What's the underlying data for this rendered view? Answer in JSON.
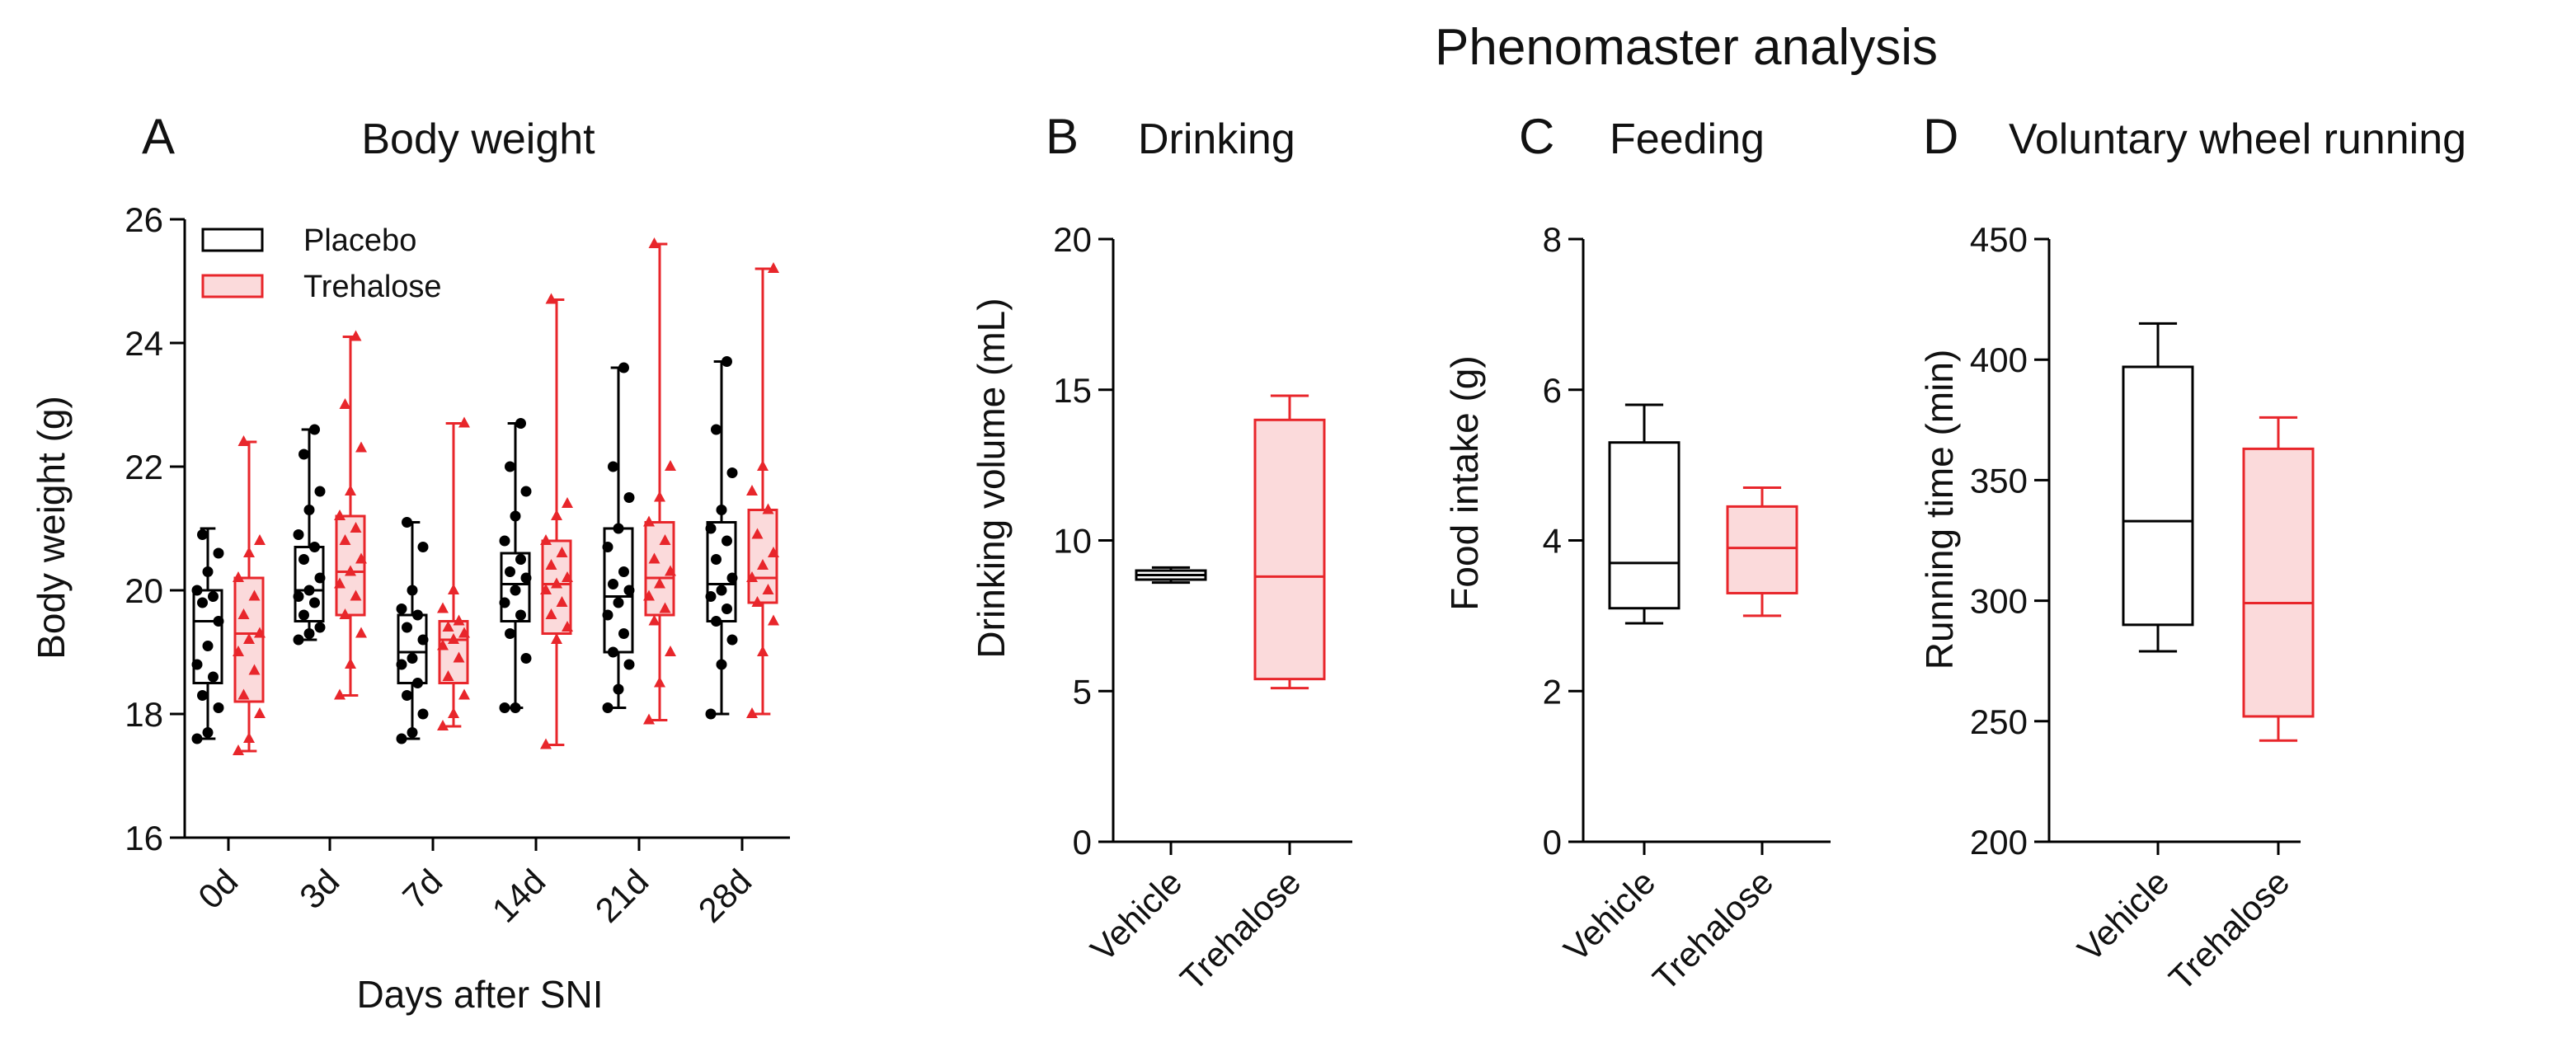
{
  "figure": {
    "title": "Phenomaster analysis",
    "colors": {
      "placebo": "#000000",
      "trehalose": "#e8262b",
      "trehalose_fill": "#fbdadb"
    }
  },
  "chart_data": [
    {
      "panel": "A",
      "type": "box",
      "title": "Body weight",
      "xlabel": "Days after SNI",
      "ylabel": "Body weight (g)",
      "ylim": [
        16,
        26
      ],
      "yticks": [
        16,
        18,
        20,
        22,
        24,
        26
      ],
      "categories": [
        "0d",
        "3d",
        "7d",
        "14d",
        "21d",
        "28d"
      ],
      "legend": {
        "position": "top-left",
        "entries": [
          "Placebo",
          "Trehalose"
        ]
      },
      "series": [
        {
          "name": "Placebo",
          "box": [
            {
              "min": 17.6,
              "q1": 18.5,
              "median": 19.5,
              "q3": 20.0,
              "max": 21.0
            },
            {
              "min": 19.2,
              "q1": 19.5,
              "median": 20.0,
              "q3": 20.7,
              "max": 22.6
            },
            {
              "min": 17.6,
              "q1": 18.5,
              "median": 19.0,
              "q3": 19.6,
              "max": 21.1
            },
            {
              "min": 18.1,
              "q1": 19.5,
              "median": 20.1,
              "q3": 20.6,
              "max": 22.7
            },
            {
              "min": 18.1,
              "q1": 19.0,
              "median": 19.9,
              "q3": 21.0,
              "max": 23.6
            },
            {
              "min": 18.0,
              "q1": 19.5,
              "median": 20.1,
              "q3": 21.1,
              "max": 23.7
            }
          ],
          "points": [
            [
              17.6,
              17.7,
              18.1,
              18.3,
              18.6,
              18.8,
              19.1,
              19.5,
              19.8,
              19.9,
              20.0,
              20.3,
              20.6,
              20.9
            ],
            [
              19.2,
              19.3,
              19.4,
              19.6,
              19.8,
              19.9,
              20.0,
              20.2,
              20.5,
              20.7,
              20.9,
              21.3,
              21.6,
              22.2,
              22.6
            ],
            [
              17.6,
              17.7,
              18.0,
              18.3,
              18.5,
              18.8,
              18.9,
              19.2,
              19.4,
              19.6,
              19.7,
              20.0,
              20.7,
              21.1
            ],
            [
              18.1,
              18.1,
              18.9,
              19.3,
              19.6,
              19.8,
              20.0,
              20.2,
              20.3,
              20.5,
              20.8,
              21.2,
              21.6,
              22.0,
              22.7
            ],
            [
              18.1,
              18.4,
              18.8,
              19.0,
              19.3,
              19.6,
              19.8,
              20.0,
              20.1,
              20.3,
              20.7,
              21.0,
              21.5,
              22.0,
              23.6
            ],
            [
              18.0,
              18.8,
              19.2,
              19.5,
              19.7,
              19.9,
              20.0,
              20.2,
              20.5,
              20.8,
              21.0,
              21.3,
              21.9,
              22.6,
              23.7
            ]
          ]
        },
        {
          "name": "Trehalose",
          "box": [
            {
              "min": 17.4,
              "q1": 18.2,
              "median": 19.3,
              "q3": 20.2,
              "max": 22.4
            },
            {
              "min": 18.3,
              "q1": 19.6,
              "median": 20.3,
              "q3": 21.2,
              "max": 24.1
            },
            {
              "min": 17.8,
              "q1": 18.5,
              "median": 19.2,
              "q3": 19.5,
              "max": 22.7
            },
            {
              "min": 17.5,
              "q1": 19.3,
              "median": 20.1,
              "q3": 20.8,
              "max": 24.7
            },
            {
              "min": 17.9,
              "q1": 19.6,
              "median": 20.2,
              "q3": 21.1,
              "max": 25.6
            },
            {
              "min": 18.0,
              "q1": 19.8,
              "median": 20.2,
              "q3": 21.3,
              "max": 25.2
            }
          ],
          "points": [
            [
              17.4,
              17.6,
              18.0,
              18.3,
              18.7,
              19.0,
              19.2,
              19.3,
              19.6,
              19.9,
              20.2,
              20.6,
              20.8,
              22.4
            ],
            [
              18.3,
              18.8,
              19.3,
              19.6,
              19.9,
              20.1,
              20.3,
              20.5,
              20.8,
              21.0,
              21.2,
              21.6,
              22.3,
              23.0,
              24.1
            ],
            [
              17.8,
              18.0,
              18.3,
              18.6,
              18.9,
              19.1,
              19.2,
              19.3,
              19.4,
              19.5,
              19.7,
              20.0,
              22.7
            ],
            [
              17.5,
              19.2,
              19.4,
              19.6,
              19.8,
              20.0,
              20.1,
              20.2,
              20.4,
              20.6,
              20.8,
              21.2,
              21.4,
              24.7
            ],
            [
              17.9,
              18.5,
              19.0,
              19.5,
              19.7,
              19.9,
              20.1,
              20.3,
              20.5,
              20.8,
              21.1,
              21.5,
              22.0,
              25.6
            ],
            [
              18.0,
              19.0,
              19.5,
              19.8,
              20.0,
              20.2,
              20.4,
              20.6,
              20.9,
              21.3,
              21.6,
              22.0,
              25.2
            ]
          ]
        }
      ]
    },
    {
      "panel": "B",
      "type": "box",
      "title": "Drinking",
      "ylabel": "Drinking volume (mL)",
      "ylim": [
        0,
        20
      ],
      "yticks": [
        0,
        5,
        10,
        15,
        20
      ],
      "categories": [
        "Vehicle",
        "Trehalose"
      ],
      "series": [
        {
          "name": "Vehicle",
          "min": 8.6,
          "q1": 8.7,
          "median": 8.85,
          "q3": 9.0,
          "max": 9.1
        },
        {
          "name": "Trehalose",
          "min": 5.1,
          "q1": 5.4,
          "median": 8.8,
          "q3": 14.0,
          "max": 14.8
        }
      ]
    },
    {
      "panel": "C",
      "type": "box",
      "title": "Feeding",
      "ylabel": "Food intake (g)",
      "ylim": [
        0,
        8
      ],
      "yticks": [
        0,
        2,
        4,
        6,
        8
      ],
      "categories": [
        "Vehicle",
        "Trehalose"
      ],
      "series": [
        {
          "name": "Vehicle",
          "min": 2.9,
          "q1": 3.1,
          "median": 3.7,
          "q3": 5.3,
          "max": 5.8
        },
        {
          "name": "Trehalose",
          "min": 3.0,
          "q1": 3.3,
          "median": 3.9,
          "q3": 4.45,
          "max": 4.7
        }
      ]
    },
    {
      "panel": "D",
      "type": "box",
      "title": "Voluntary wheel running",
      "ylabel": "Running time (min)",
      "ylim": [
        200,
        450
      ],
      "yticks": [
        200,
        250,
        300,
        350,
        400,
        450
      ],
      "categories": [
        "Vehicle",
        "Trehalose"
      ],
      "series": [
        {
          "name": "Vehicle",
          "min": 279,
          "q1": 290,
          "median": 333,
          "q3": 397,
          "max": 415
        },
        {
          "name": "Trehalose",
          "min": 242,
          "q1": 252,
          "median": 299,
          "q3": 363,
          "max": 376
        }
      ]
    }
  ]
}
